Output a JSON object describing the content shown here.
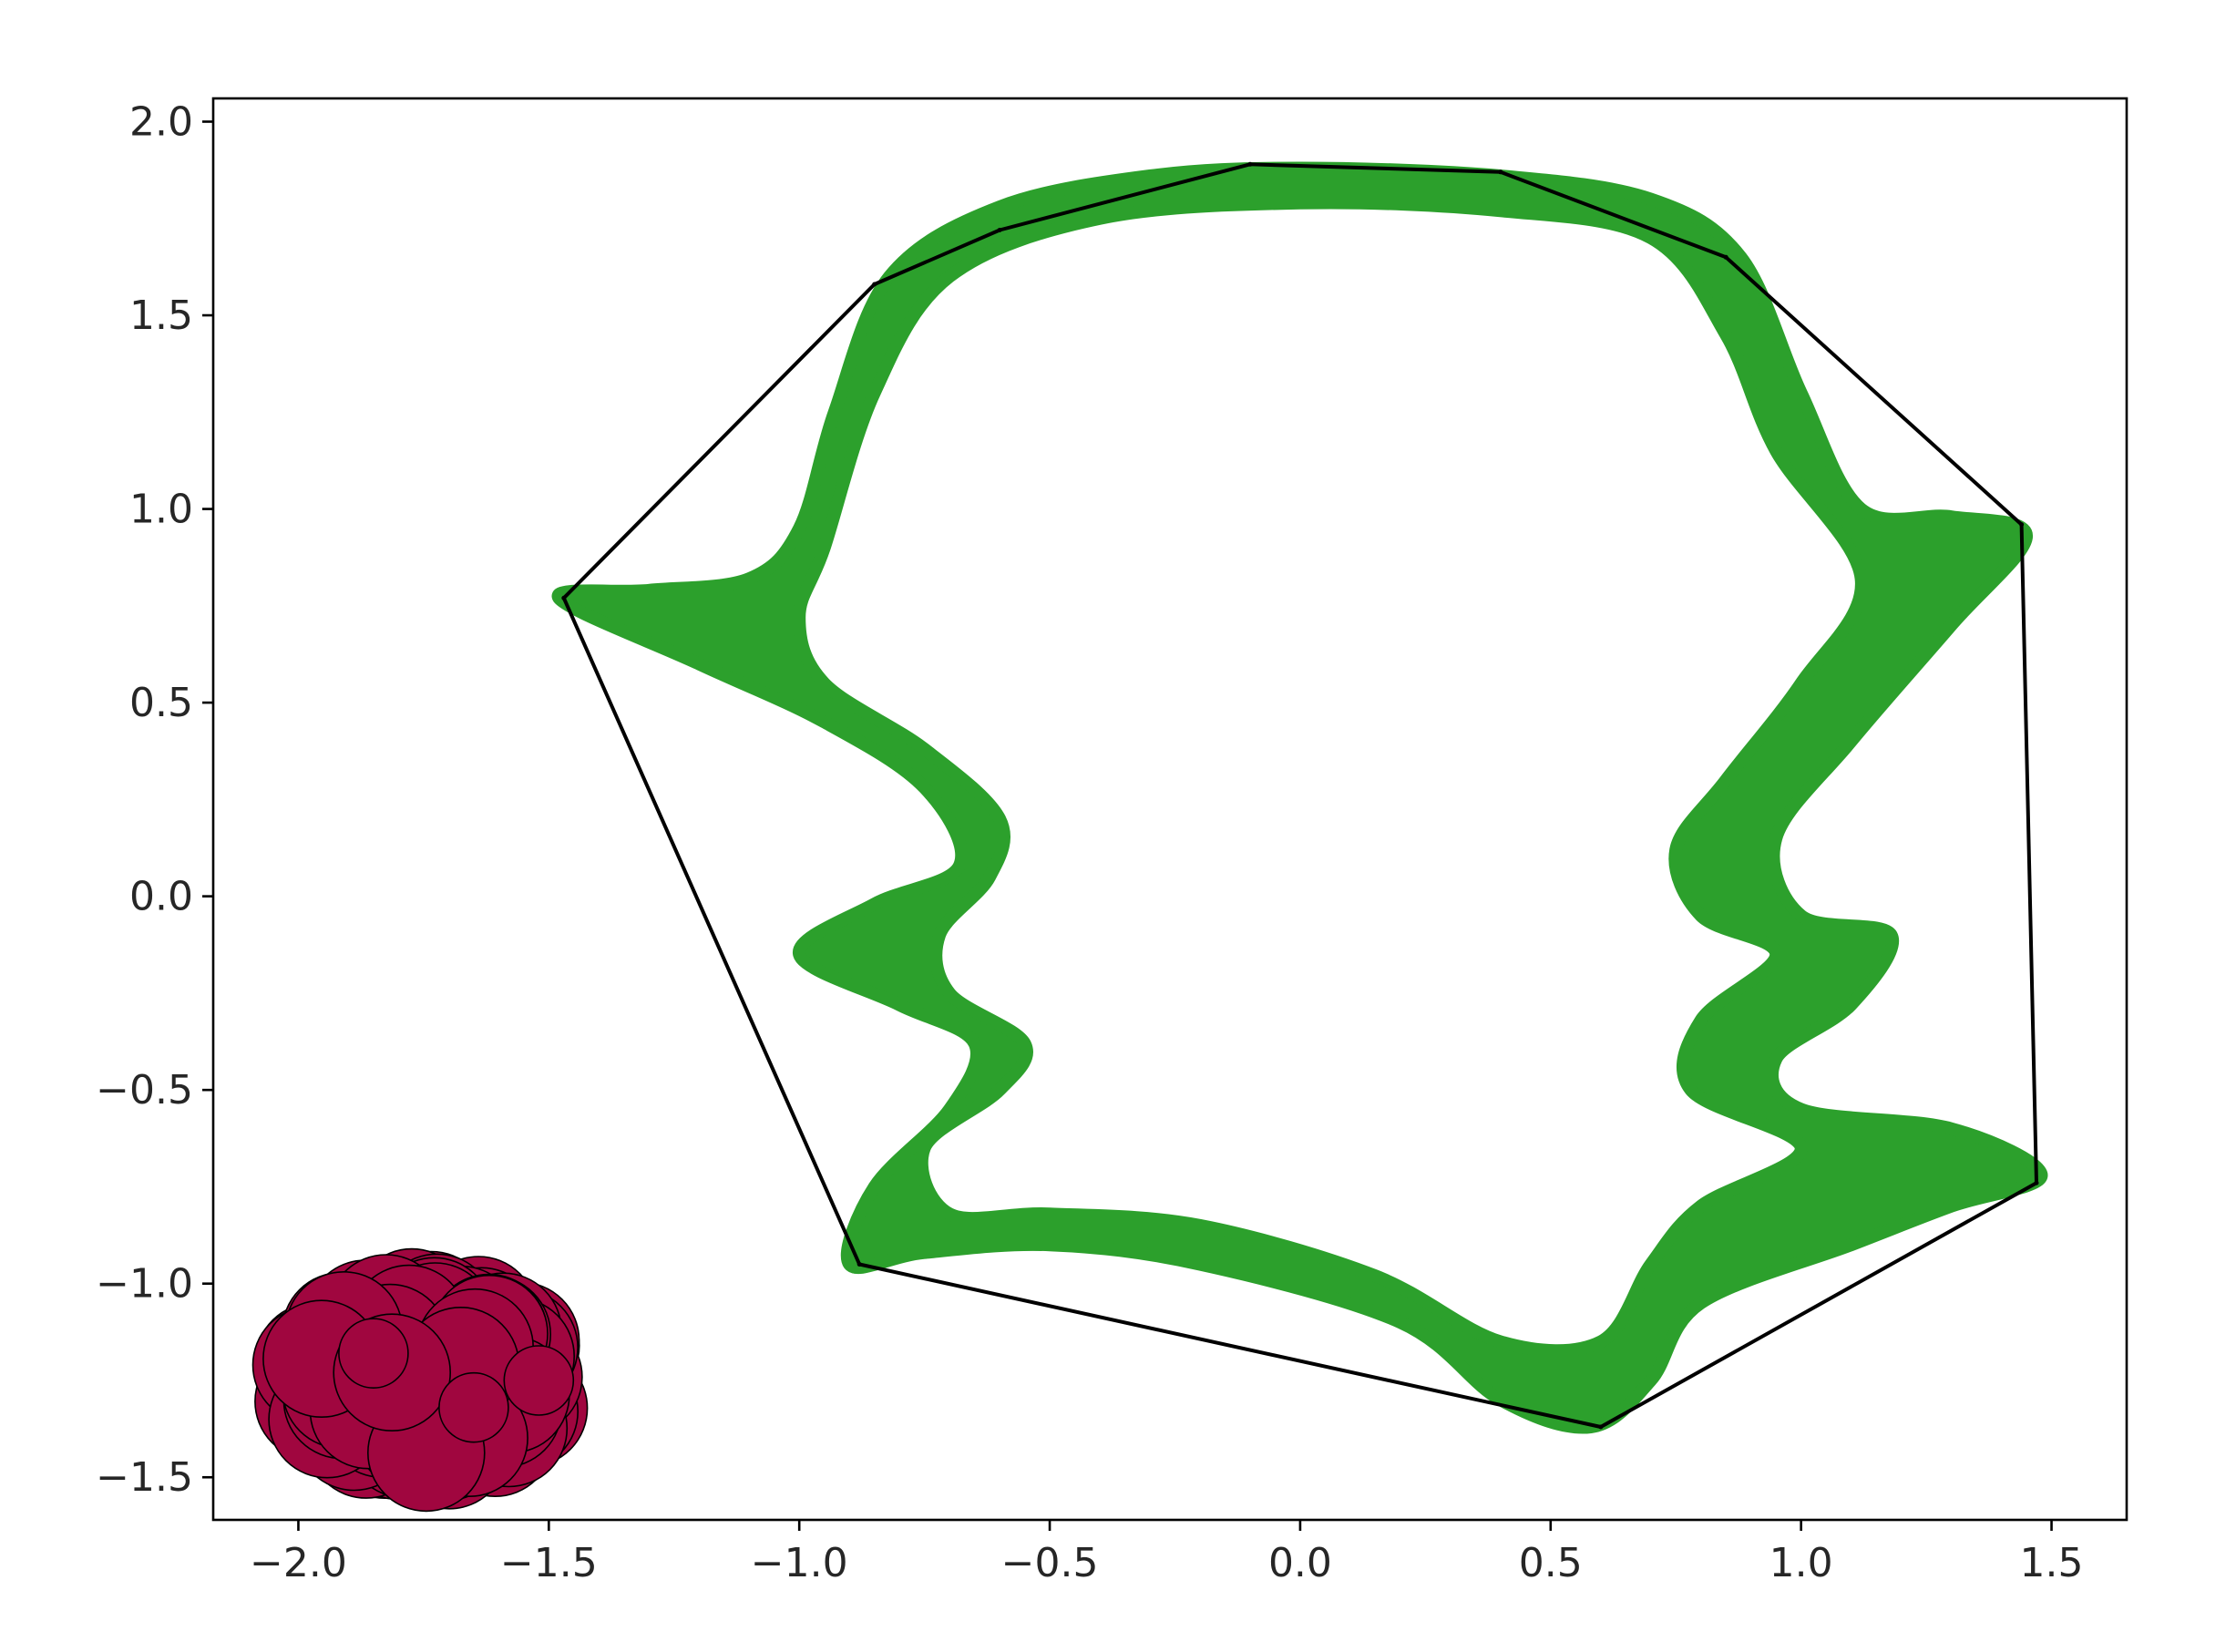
{
  "chart_data": {
    "type": "scatter",
    "title": "",
    "xlabel": "",
    "ylabel": "",
    "xlim": [
      -2.17,
      1.65
    ],
    "ylim": [
      -1.61,
      2.06
    ],
    "grid": false,
    "x_ticks": [
      -2.0,
      -1.5,
      -1.0,
      -0.5,
      0.0,
      0.5,
      1.0,
      1.5
    ],
    "y_ticks": [
      -1.5,
      -1.0,
      -0.5,
      0.0,
      0.5,
      1.0,
      1.5,
      2.0
    ],
    "x_tick_labels": [
      "−2.0",
      "−1.5",
      "−1.0",
      "−0.5",
      "0.0",
      "0.5",
      "1.0",
      "1.5"
    ],
    "y_tick_labels": [
      "−1.5",
      "−1.0",
      "−0.5",
      "0.0",
      "0.5",
      "1.0",
      "1.5",
      "2.0"
    ],
    "colors": {
      "green_band": "#2ca02c",
      "hull_line": "#000000",
      "cluster_fill": "#a0063f",
      "cluster_edge": "#000000"
    },
    "series": [
      {
        "kind": "scatter_band",
        "color": "#2ca02c",
        "outline": [
          [
            -1.48,
            0.77
          ],
          [
            -1.3,
            0.79
          ],
          [
            -1.1,
            0.82
          ],
          [
            -1.0,
            0.95
          ],
          [
            -0.93,
            1.25
          ],
          [
            -0.82,
            1.6
          ],
          [
            -0.6,
            1.78
          ],
          [
            -0.3,
            1.86
          ],
          [
            0.0,
            1.88
          ],
          [
            0.4,
            1.86
          ],
          [
            0.7,
            1.8
          ],
          [
            0.88,
            1.65
          ],
          [
            1.0,
            1.3
          ],
          [
            1.12,
            1.0
          ],
          [
            1.3,
            0.98
          ],
          [
            1.45,
            0.93
          ],
          [
            1.3,
            0.7
          ],
          [
            1.1,
            0.4
          ],
          [
            0.95,
            0.15
          ],
          [
            1.0,
            -0.05
          ],
          [
            1.18,
            -0.1
          ],
          [
            1.1,
            -0.28
          ],
          [
            0.95,
            -0.42
          ],
          [
            1.0,
            -0.55
          ],
          [
            1.3,
            -0.6
          ],
          [
            1.48,
            -0.72
          ],
          [
            1.3,
            -0.8
          ],
          [
            1.1,
            -0.9
          ],
          [
            0.8,
            -1.05
          ],
          [
            0.7,
            -1.25
          ],
          [
            0.58,
            -1.37
          ],
          [
            0.4,
            -1.3
          ],
          [
            0.2,
            -1.1
          ],
          [
            -0.2,
            -0.95
          ],
          [
            -0.5,
            -0.9
          ],
          [
            -0.75,
            -0.92
          ],
          [
            -0.9,
            -0.95
          ],
          [
            -0.85,
            -0.75
          ],
          [
            -0.7,
            -0.55
          ],
          [
            -0.65,
            -0.38
          ],
          [
            -0.8,
            -0.28
          ],
          [
            -1.0,
            -0.15
          ],
          [
            -0.85,
            -0.02
          ],
          [
            -0.68,
            0.08
          ],
          [
            -0.75,
            0.28
          ],
          [
            -0.95,
            0.45
          ],
          [
            -1.2,
            0.6
          ]
        ],
        "inner": [
          [
            -1.0,
            0.72
          ],
          [
            -0.95,
            0.9
          ],
          [
            -0.85,
            1.3
          ],
          [
            -0.7,
            1.6
          ],
          [
            -0.4,
            1.75
          ],
          [
            0.0,
            1.79
          ],
          [
            0.4,
            1.77
          ],
          [
            0.7,
            1.7
          ],
          [
            0.85,
            1.45
          ],
          [
            0.95,
            1.15
          ],
          [
            1.12,
            0.82
          ],
          [
            1.0,
            0.55
          ],
          [
            0.85,
            0.3
          ],
          [
            0.75,
            0.12
          ],
          [
            0.8,
            -0.05
          ],
          [
            0.95,
            -0.15
          ],
          [
            0.8,
            -0.32
          ],
          [
            0.78,
            -0.5
          ],
          [
            1.0,
            -0.65
          ],
          [
            0.8,
            -0.8
          ],
          [
            0.7,
            -0.95
          ],
          [
            0.6,
            -1.15
          ],
          [
            0.4,
            -1.15
          ],
          [
            0.15,
            -0.98
          ],
          [
            -0.2,
            -0.85
          ],
          [
            -0.5,
            -0.82
          ],
          [
            -0.7,
            -0.82
          ],
          [
            -0.75,
            -0.65
          ],
          [
            -0.6,
            -0.5
          ],
          [
            -0.55,
            -0.38
          ],
          [
            -0.7,
            -0.25
          ],
          [
            -0.72,
            -0.1
          ],
          [
            -0.62,
            0.05
          ],
          [
            -0.6,
            0.2
          ],
          [
            -0.75,
            0.38
          ],
          [
            -0.95,
            0.55
          ]
        ]
      },
      {
        "kind": "convex_hull",
        "color": "#000000",
        "points": [
          [
            -1.47,
            0.77
          ],
          [
            -0.88,
            -0.95
          ],
          [
            0.6,
            -1.37
          ],
          [
            1.47,
            -0.74
          ],
          [
            1.44,
            0.96
          ],
          [
            0.85,
            1.65
          ],
          [
            0.4,
            1.87
          ],
          [
            -0.1,
            1.89
          ],
          [
            -0.6,
            1.72
          ],
          [
            -0.85,
            1.58
          ]
        ]
      },
      {
        "kind": "cluster",
        "fill": "#a0063f",
        "edge": "#000000",
        "center": [
          -1.75,
          -1.25
        ],
        "spread": [
          0.32,
          0.27
        ],
        "highlight_points": [
          [
            -1.85,
            -1.18
          ],
          [
            -1.65,
            -1.32
          ],
          [
            -1.52,
            -1.25
          ]
        ]
      }
    ]
  }
}
